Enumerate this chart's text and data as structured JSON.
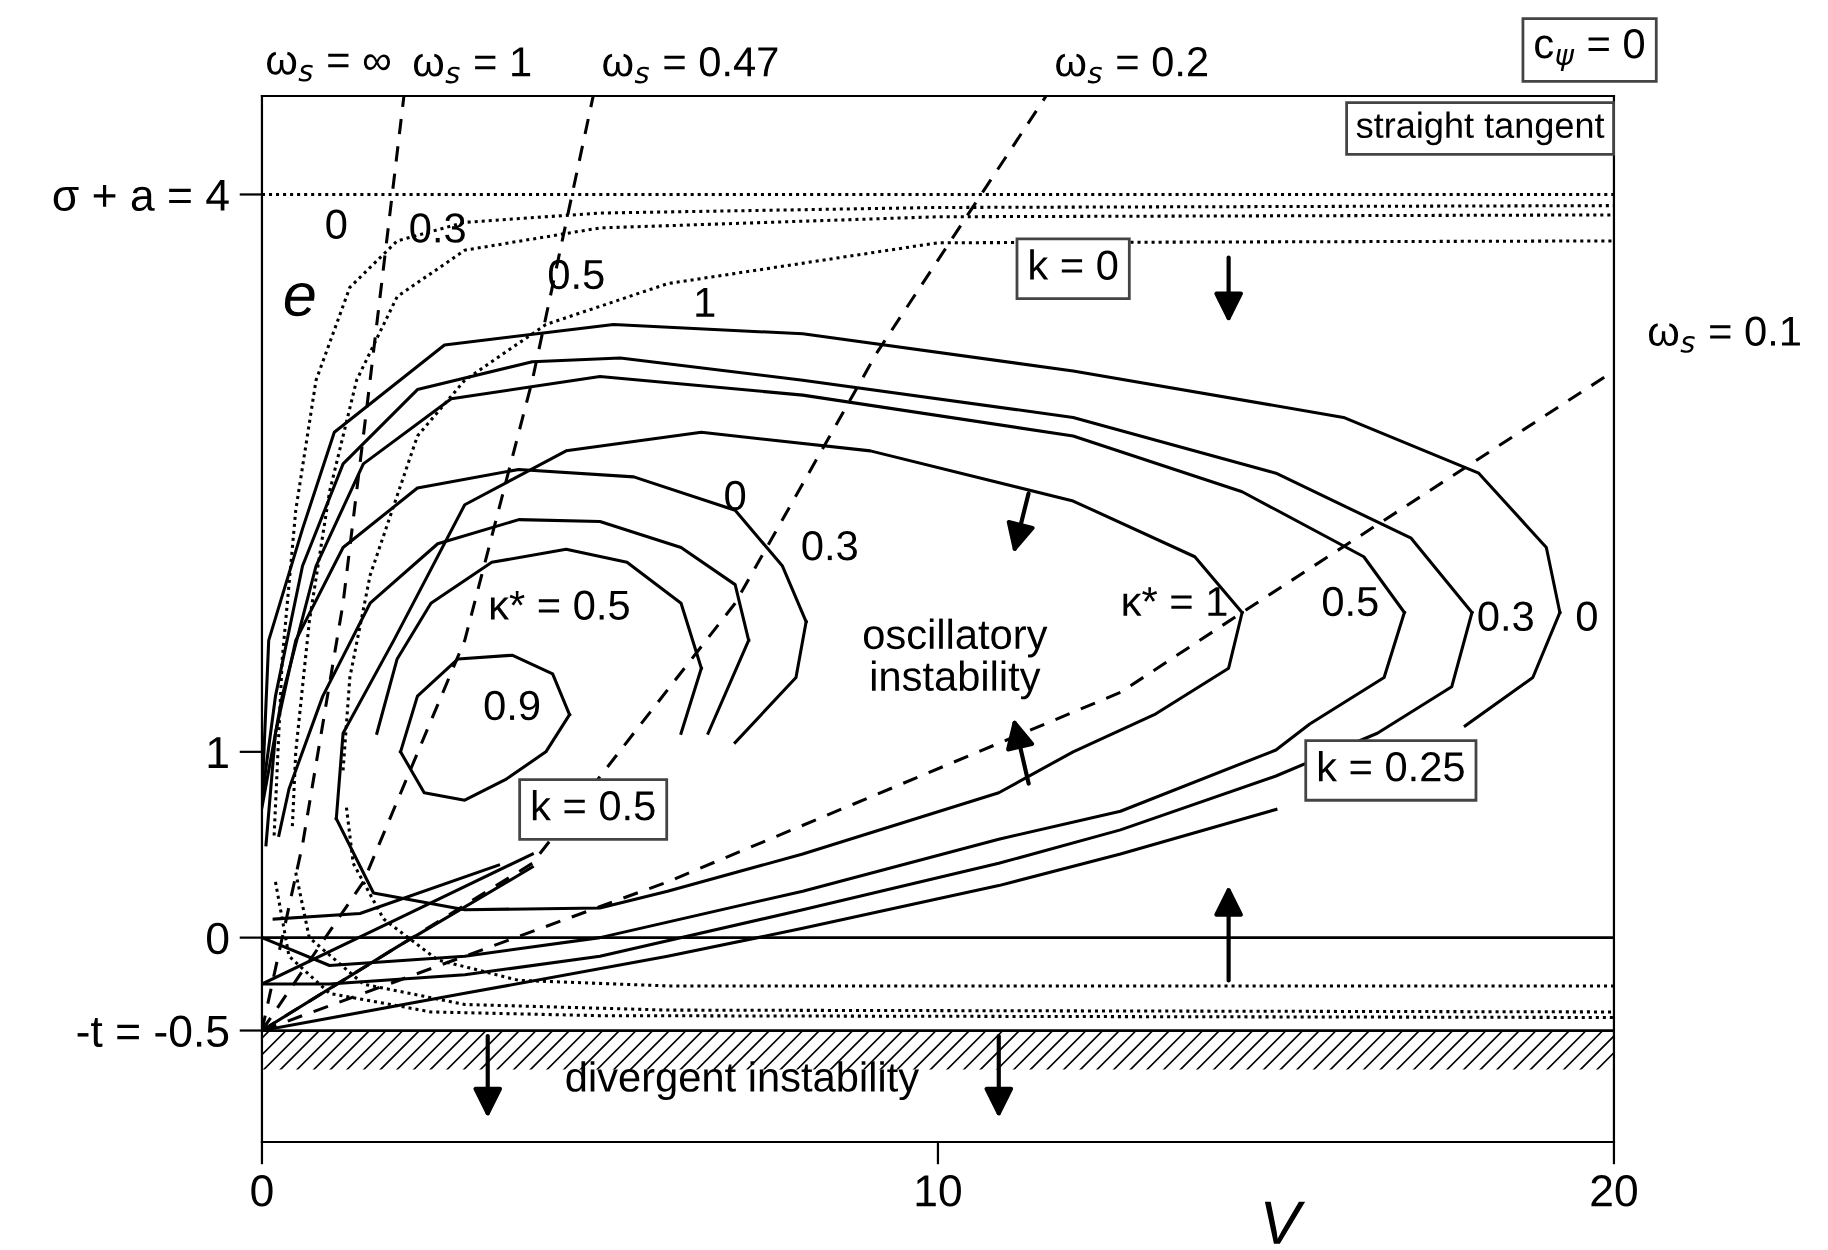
{
  "chart_data": {
    "type": "line",
    "xlabel": "V",
    "ylabel": "e",
    "xlim": [
      0,
      20
    ],
    "xticks": [
      0,
      10,
      20
    ],
    "ylim": [
      -1.1,
      4.53
    ],
    "yticks": [
      {
        "value": -0.5,
        "label": "-t = -0.5"
      },
      0,
      1,
      {
        "value": 4,
        "label": "σ + a = 4"
      }
    ],
    "series": [
      {
        "color": "#000000",
        "line_style": "dotted",
        "x": [
          0,
          20
        ],
        "values": [
          4.0,
          4.0
        ]
      },
      {
        "color": "#000000",
        "line_style": "dotted",
        "x": [
          0.18,
          0.3,
          0.5,
          0.8,
          1.3,
          2,
          3,
          5,
          10,
          20
        ],
        "values": [
          0.55,
          1.5,
          2.3,
          3.0,
          3.5,
          3.75,
          3.85,
          3.9,
          3.93,
          3.94
        ]
      },
      {
        "color": "#000000",
        "line_style": "dotted",
        "x": [
          0.2,
          0.4,
          1,
          2.5,
          5,
          20
        ],
        "values": [
          0.3,
          -0.1,
          -0.3,
          -0.4,
          -0.42,
          -0.43
        ]
      },
      {
        "color": "#000000",
        "line_style": "dotted",
        "x": [
          0.45,
          0.5,
          0.7,
          1,
          1.4,
          2,
          3,
          5,
          10,
          20
        ],
        "values": [
          0.6,
          1.0,
          1.7,
          2.4,
          3.0,
          3.45,
          3.7,
          3.82,
          3.88,
          3.89
        ]
      },
      {
        "color": "#000000",
        "line_style": "dotted",
        "x": [
          0.5,
          0.7,
          1.5,
          3,
          6,
          20
        ],
        "values": [
          0.35,
          0.0,
          -0.25,
          -0.36,
          -0.39,
          -0.4
        ]
      },
      {
        "color": "#000000",
        "line_style": "dotted",
        "x": [
          1.2,
          1.3,
          1.6,
          2.3,
          3,
          4.2,
          6,
          10,
          20
        ],
        "values": [
          0.9,
          1.4,
          1.95,
          2.7,
          3.0,
          3.3,
          3.52,
          3.74,
          3.75
        ]
      },
      {
        "color": "#000000",
        "line_style": "dotted",
        "x": [
          1.25,
          1.35,
          1.8,
          2.6,
          3.8,
          6,
          20
        ],
        "values": [
          0.7,
          0.4,
          0.1,
          -0.12,
          -0.23,
          -0.26,
          -0.26
        ]
      },
      {
        "color": "#000000",
        "line_style": "solid",
        "x": [
          0,
          0.1,
          0.6,
          1.07,
          2.7,
          5.2,
          8,
          12,
          16,
          18,
          19.0,
          19.2
        ],
        "values": [
          0.75,
          1.6,
          2.2,
          2.72,
          3.19,
          3.3,
          3.25,
          3.05,
          2.8,
          2.5,
          2.1,
          1.75
        ]
      },
      {
        "color": "#000000",
        "line_style": "solid",
        "x": [
          0,
          3,
          6,
          8,
          10.9,
          12.7,
          15,
          17,
          17.8,
          18.8,
          19.2
        ],
        "values": [
          -0.5,
          -0.3,
          -0.1,
          0.05,
          0.28,
          0.45,
          0.69,
          null,
          1.14,
          1.4,
          1.75
        ]
      },
      {
        "color": "#000000",
        "line_style": "solid",
        "x": [
          0,
          0.2,
          0.6,
          1.2,
          2.3,
          4,
          5.3,
          8,
          12,
          15,
          17,
          17.9
        ],
        "values": [
          0.75,
          1.3,
          2.0,
          2.55,
          2.95,
          3.1,
          3.12,
          3.0,
          2.8,
          2.5,
          2.15,
          1.75
        ]
      },
      {
        "color": "#000000",
        "line_style": "solid",
        "x": [
          0,
          1,
          3,
          5,
          8,
          10.9,
          12.7,
          15,
          16.5,
          17.6,
          17.9
        ],
        "values": [
          -0.25,
          -0.25,
          -0.2,
          -0.1,
          0.15,
          0.4,
          0.58,
          0.87,
          1.1,
          1.35,
          1.75
        ]
      },
      {
        "color": "#000000",
        "line_style": "solid",
        "x": [
          0,
          0.3,
          0.8,
          1.5,
          2.8,
          5,
          8,
          12,
          14.5,
          16.3,
          16.9
        ],
        "values": [
          0.7,
          1.3,
          2.0,
          2.55,
          2.9,
          3.02,
          2.92,
          2.7,
          2.4,
          2.05,
          1.75
        ]
      },
      {
        "color": "#000000",
        "line_style": "solid",
        "x": [
          0,
          1,
          3,
          5,
          8,
          10.9,
          12.7,
          15,
          15.5,
          16.6,
          16.9
        ],
        "values": [
          0.0,
          -0.15,
          -0.1,
          0.0,
          0.25,
          0.53,
          0.68,
          1.01,
          1.15,
          1.4,
          1.75
        ]
      },
      {
        "color": "#000000",
        "line_style": "solid",
        "x": [
          1.1,
          1.2,
          1.95,
          3,
          4.5,
          6.5,
          9,
          12,
          13.8,
          14.5
        ],
        "values": [
          0.64,
          1.1,
          1.6,
          2.33,
          2.62,
          2.72,
          2.62,
          2.35,
          2.05,
          1.75
        ]
      },
      {
        "color": "#000000",
        "line_style": "solid",
        "x": [
          1.1,
          1.65,
          3,
          5,
          6,
          8,
          10.9,
          12,
          13.2,
          14.3,
          14.5
        ],
        "values": [
          0.64,
          0.24,
          0.15,
          0.16,
          0.25,
          0.45,
          0.78,
          1.0,
          1.2,
          1.45,
          1.75
        ]
      },
      {
        "color": "#000000",
        "line_style": "solid",
        "x": [
          0.06,
          0.2,
          0.5,
          1.2,
          2.3,
          3.8,
          5.5,
          7,
          7.7,
          8.05
        ],
        "values": [
          0.5,
          1.1,
          1.6,
          2.1,
          2.42,
          2.52,
          2.48,
          2.3,
          2.0,
          1.7
        ]
      },
      {
        "color": "#000000",
        "line_style": "solid",
        "x": [
          0.18,
          1.45,
          3.5,
          5.5,
          7,
          7.9,
          8.05
        ],
        "values": [
          0.1,
          0.13,
          0.39,
          null,
          1.05,
          1.4,
          1.7
        ]
      },
      {
        "color": "#000000",
        "line_style": "solid",
        "x": [
          0.25,
          0.4,
          0.9,
          1.6,
          2.6,
          3.8,
          5,
          6.2,
          7.0,
          7.2
        ],
        "values": [
          0.55,
          0.8,
          1.3,
          1.8,
          2.12,
          2.25,
          2.24,
          2.1,
          1.9,
          1.6
        ]
      },
      {
        "color": "#000000",
        "line_style": "solid",
        "x": [
          0,
          2,
          4,
          5.5,
          6.6,
          7.2
        ],
        "values": [
          -0.5,
          -0.05,
          0.38,
          null,
          1.1,
          1.6
        ]
      },
      {
        "color": "#000000",
        "line_style": "solid",
        "x": [
          1.7,
          2.0,
          2.5,
          3.4,
          4.5,
          5.4,
          6.2,
          6.5
        ],
        "values": [
          1.1,
          1.5,
          1.8,
          2.02,
          2.09,
          2.02,
          1.8,
          1.45
        ]
      },
      {
        "color": "#000000",
        "line_style": "solid",
        "x": [
          0,
          2,
          4,
          5.4,
          6.2,
          6.5
        ],
        "values": [
          -0.25,
          0.1,
          0.45,
          null,
          1.1,
          1.45
        ]
      },
      {
        "color": "#000000",
        "line_style": "solid",
        "x": [
          2.05,
          2.3,
          2.9,
          3.7,
          4.3,
          4.55
        ],
        "values": [
          1.0,
          1.3,
          1.5,
          1.52,
          1.42,
          1.2
        ]
      },
      {
        "color": "#000000",
        "line_style": "solid",
        "x": [
          2.05,
          2.4,
          3,
          3.6,
          4.2,
          4.55
        ],
        "values": [
          1.0,
          0.78,
          0.74,
          0.85,
          1.0,
          1.2
        ]
      },
      {
        "color": "#000000",
        "line_style": "dashed",
        "x": [
          0,
          0.6,
          1.2,
          1.6,
          2.1
        ],
        "values": [
          -0.5,
          0.5,
          1.8,
          3.0,
          4.53
        ]
      },
      {
        "color": "#000000",
        "line_style": "dashed",
        "x": [
          0,
          1.5,
          3,
          4,
          4.9
        ],
        "values": [
          -0.5,
          0.3,
          1.6,
          3.0,
          4.53
        ]
      },
      {
        "color": "#000000",
        "line_style": "dashed",
        "x": [
          0,
          4,
          7,
          9.1,
          11.6
        ],
        "values": [
          -0.5,
          0.4,
          1.8,
          3.15,
          4.53
        ]
      },
      {
        "color": "#000000",
        "line_style": "dashed",
        "x": [
          0,
          6,
          12.7,
          14.5,
          20
        ],
        "values": [
          -0.5,
          0.3,
          1.32,
          1.75,
          3.05
        ]
      }
    ],
    "ref_lines": [
      {
        "axis": "y",
        "value": 0,
        "color": "#000000"
      },
      {
        "axis": "y",
        "value": -0.5,
        "color": "#000000"
      }
    ],
    "bands": [
      {
        "axis": "y",
        "from": -0.71,
        "to": -0.5,
        "color": "#000000"
      }
    ],
    "annotations": [
      "c$_{ψ}$ = 0",
      "straight tangent",
      "ω$_{s}$ = ∞",
      {
        "text": "ω$_{s}$ = 1",
        "x": 2.1,
        "y": 4.53
      },
      {
        "text": "ω$_{s}$ = 0.47",
        "x": 4.9,
        "y": 4.53
      },
      {
        "text": "ω$_{s}$ = 0.2",
        "x": 11.6,
        "y": 4.53
      },
      {
        "text": "ω$_{s}$ = 0.1",
        "x": 20,
        "y": 3.05
      },
      "k = 0",
      "k = 0.25",
      "k = 0.5",
      "0",
      "0.3",
      "0.5",
      "1",
      "0",
      "0.3",
      "κ* = 0.5",
      "0.9",
      "κ* = 1",
      "0.5",
      "0.3",
      "0",
      "oscillatory\ninstability",
      "divergent instability"
    ]
  }
}
